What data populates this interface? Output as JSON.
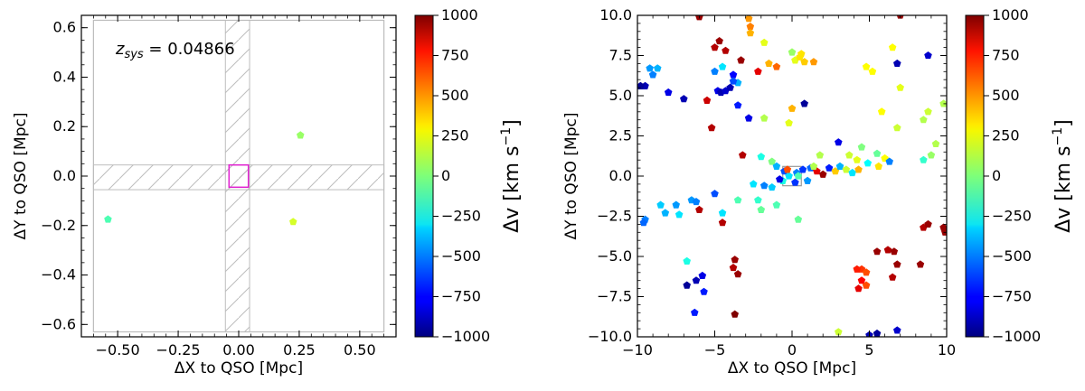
{
  "chart_data": [
    {
      "type": "scatter",
      "name": "zoom-panel",
      "xlabel": "ΔX to QSO [Mpc]",
      "ylabel": "ΔY to QSO [Mpc]",
      "xlim": [
        -0.65,
        0.65
      ],
      "ylim": [
        -0.65,
        0.65
      ],
      "xticks": [
        -0.5,
        -0.25,
        0.0,
        0.25,
        0.5
      ],
      "xtick_labels": [
        "−0.50",
        "−0.25",
        "0.00",
        "0.25",
        "0.50"
      ],
      "yticks": [
        -0.6,
        -0.4,
        -0.2,
        0.0,
        0.2,
        0.4,
        0.6
      ],
      "ytick_labels": [
        "−0.6",
        "−0.4",
        "−0.2",
        "0.0",
        "0.2",
        "0.4",
        "0.6"
      ],
      "annotation_prefix": "z",
      "annotation_sub": "sys",
      "annotation_value": " = 0.04866",
      "field_box": [
        -0.6,
        0.6,
        -0.63,
        0.63
      ],
      "hatch_horizontal": [
        -0.055,
        0.045
      ],
      "hatch_vertical": [
        -0.055,
        0.045
      ],
      "qso_box": [
        -0.04,
        0.04,
        -0.045,
        0.045
      ],
      "qso_box_color": "#e020d0",
      "points": [
        {
          "x": -0.54,
          "y": -0.175,
          "v": -100
        },
        {
          "x": 0.255,
          "y": 0.165,
          "v": 50
        },
        {
          "x": 0.225,
          "y": -0.185,
          "v": 170
        }
      ],
      "colorbar": {
        "label_base": "Δv [km s",
        "label_exp": "−1",
        "label_end": "]",
        "vmin": -1000,
        "vmax": 1000,
        "ticks": [
          1000,
          750,
          500,
          250,
          0,
          -250,
          -500,
          -750,
          -1000
        ],
        "tick_labels": [
          "1000",
          "750",
          "500",
          "250",
          "0",
          "−250",
          "−500",
          "−750",
          "−1000"
        ]
      }
    },
    {
      "type": "scatter",
      "name": "wide-panel",
      "xlabel": "ΔX to QSO [Mpc]",
      "ylabel": "ΔY to QSO [Mpc]",
      "xlim": [
        -10,
        10
      ],
      "ylim": [
        -10,
        10
      ],
      "xticks": [
        -10,
        -5,
        0,
        5,
        10
      ],
      "xtick_labels": [
        "−10",
        "−5",
        "0",
        "5",
        "10"
      ],
      "yticks": [
        -10,
        -7.5,
        -5,
        -2.5,
        0,
        2.5,
        5,
        7.5,
        10
      ],
      "ytick_labels": [
        "−10.0",
        "−7.5",
        "−5.0",
        "−2.5",
        "0.0",
        "2.5",
        "5.0",
        "7.5",
        "10.0"
      ],
      "field_box": [
        -0.6,
        0.6,
        -0.6,
        0.6
      ],
      "points": [
        {
          "x": -9.5,
          "y": 5.6,
          "v": -900
        },
        {
          "x": -9.8,
          "y": 5.6,
          "v": -950
        },
        {
          "x": -9.2,
          "y": 6.7,
          "v": -450
        },
        {
          "x": -8.7,
          "y": 6.7,
          "v": -400
        },
        {
          "x": -9.0,
          "y": 6.3,
          "v": -500
        },
        {
          "x": -8.0,
          "y": 5.2,
          "v": -800
        },
        {
          "x": -7.0,
          "y": 4.8,
          "v": -900
        },
        {
          "x": -5.5,
          "y": 4.7,
          "v": 850
        },
        {
          "x": -5.0,
          "y": 8.0,
          "v": 900
        },
        {
          "x": -4.7,
          "y": 8.4,
          "v": 950
        },
        {
          "x": -4.3,
          "y": 7.8,
          "v": 900
        },
        {
          "x": -5.0,
          "y": 6.5,
          "v": -500
        },
        {
          "x": -4.5,
          "y": 6.8,
          "v": -300
        },
        {
          "x": -4.8,
          "y": 5.3,
          "v": -800
        },
        {
          "x": -4.6,
          "y": 5.2,
          "v": -900
        },
        {
          "x": -4.3,
          "y": 5.3,
          "v": -850
        },
        {
          "x": -4.0,
          "y": 5.5,
          "v": -900
        },
        {
          "x": -3.8,
          "y": 6.3,
          "v": -750
        },
        {
          "x": -3.5,
          "y": 5.8,
          "v": -400
        },
        {
          "x": -3.8,
          "y": 5.9,
          "v": -600
        },
        {
          "x": -3.3,
          "y": 7.2,
          "v": 950
        },
        {
          "x": -3.5,
          "y": 4.4,
          "v": -700
        },
        {
          "x": -2.8,
          "y": 9.8,
          "v": 450
        },
        {
          "x": -2.7,
          "y": 9.3,
          "v": 500
        },
        {
          "x": -2.7,
          "y": 8.9,
          "v": 400
        },
        {
          "x": -2.2,
          "y": 6.5,
          "v": 800
        },
        {
          "x": -1.8,
          "y": 8.3,
          "v": 200
        },
        {
          "x": -1.5,
          "y": 7.0,
          "v": 400
        },
        {
          "x": -1.0,
          "y": 6.8,
          "v": 550
        },
        {
          "x": 0.0,
          "y": 7.7,
          "v": 50
        },
        {
          "x": 0.2,
          "y": 7.2,
          "v": 200
        },
        {
          "x": 0.5,
          "y": 7.4,
          "v": 300
        },
        {
          "x": 0.8,
          "y": 7.1,
          "v": 350
        },
        {
          "x": 1.4,
          "y": 7.1,
          "v": 450
        },
        {
          "x": 0.6,
          "y": 7.6,
          "v": 300
        },
        {
          "x": -6.0,
          "y": 9.9,
          "v": 950
        },
        {
          "x": -2.8,
          "y": 3.6,
          "v": -800
        },
        {
          "x": -1.8,
          "y": 3.6,
          "v": 100
        },
        {
          "x": -0.2,
          "y": 3.3,
          "v": 200
        },
        {
          "x": 0.0,
          "y": 4.2,
          "v": 400
        },
        {
          "x": 0.8,
          "y": 4.5,
          "v": -950
        },
        {
          "x": -5.2,
          "y": 3.0,
          "v": 900
        },
        {
          "x": 6.5,
          "y": 8.0,
          "v": 250
        },
        {
          "x": 7.0,
          "y": 10.0,
          "v": 950
        },
        {
          "x": 6.8,
          "y": 7.0,
          "v": -900
        },
        {
          "x": 8.8,
          "y": 7.5,
          "v": -850
        },
        {
          "x": 4.8,
          "y": 6.8,
          "v": 250
        },
        {
          "x": 5.2,
          "y": 6.5,
          "v": 250
        },
        {
          "x": 5.8,
          "y": 4.0,
          "v": 250
        },
        {
          "x": 7.0,
          "y": 5.5,
          "v": 200
        },
        {
          "x": 8.5,
          "y": 3.5,
          "v": 100
        },
        {
          "x": 8.8,
          "y": 4.0,
          "v": 150
        },
        {
          "x": 9.8,
          "y": 4.5,
          "v": 100
        },
        {
          "x": 6.8,
          "y": 3.0,
          "v": 150
        },
        {
          "x": 9.3,
          "y": 2.0,
          "v": 100
        },
        {
          "x": 9.0,
          "y": 1.3,
          "v": 50
        },
        {
          "x": 8.5,
          "y": 1.0,
          "v": -150
        },
        {
          "x": 6.0,
          "y": 1.1,
          "v": 250
        },
        {
          "x": 5.5,
          "y": 1.4,
          "v": -50
        },
        {
          "x": 4.5,
          "y": 1.8,
          "v": 0
        },
        {
          "x": 3.0,
          "y": 2.1,
          "v": -800
        },
        {
          "x": 1.8,
          "y": 1.3,
          "v": 100
        },
        {
          "x": 3.7,
          "y": 1.3,
          "v": 150
        },
        {
          "x": 4.2,
          "y": 1.0,
          "v": 200
        },
        {
          "x": 4.9,
          "y": 0.8,
          "v": -250
        },
        {
          "x": 5.6,
          "y": 0.6,
          "v": 300
        },
        {
          "x": 6.3,
          "y": 0.9,
          "v": -500
        },
        {
          "x": -3.2,
          "y": 1.3,
          "v": 900
        },
        {
          "x": -2.0,
          "y": 1.2,
          "v": -200
        },
        {
          "x": -1.3,
          "y": 0.9,
          "v": 0
        },
        {
          "x": -1.0,
          "y": 0.6,
          "v": -400
        },
        {
          "x": -0.5,
          "y": 0.3,
          "v": -600
        },
        {
          "x": -0.2,
          "y": 0.0,
          "v": -300
        },
        {
          "x": 0.3,
          "y": 0.2,
          "v": -500
        },
        {
          "x": 0.7,
          "y": 0.4,
          "v": -650
        },
        {
          "x": 1.2,
          "y": 0.5,
          "v": -550
        },
        {
          "x": 1.6,
          "y": 0.3,
          "v": 800
        },
        {
          "x": 2.0,
          "y": 0.1,
          "v": 950
        },
        {
          "x": 2.4,
          "y": 0.5,
          "v": -700
        },
        {
          "x": 2.8,
          "y": 0.3,
          "v": 350
        },
        {
          "x": 3.1,
          "y": 0.6,
          "v": -400
        },
        {
          "x": 3.5,
          "y": 0.4,
          "v": 150
        },
        {
          "x": 3.9,
          "y": 0.2,
          "v": -300
        },
        {
          "x": 4.3,
          "y": 0.4,
          "v": 400
        },
        {
          "x": -2.5,
          "y": -0.5,
          "v": -300
        },
        {
          "x": -1.8,
          "y": -0.6,
          "v": -500
        },
        {
          "x": -1.3,
          "y": -0.7,
          "v": -350
        },
        {
          "x": -0.6,
          "y": -0.3,
          "v": -200
        },
        {
          "x": 0.2,
          "y": -0.4,
          "v": -650
        },
        {
          "x": 1.0,
          "y": -0.3,
          "v": -450
        },
        {
          "x": -0.3,
          "y": 0.4,
          "v": 600
        },
        {
          "x": 0.4,
          "y": 0.0,
          "v": -100
        },
        {
          "x": 1.4,
          "y": 0.6,
          "v": 100
        },
        {
          "x": -0.8,
          "y": -0.2,
          "v": -800
        },
        {
          "x": -9.5,
          "y": -2.7,
          "v": -500
        },
        {
          "x": -9.6,
          "y": -2.9,
          "v": -550
        },
        {
          "x": -8.5,
          "y": -1.8,
          "v": -350
        },
        {
          "x": -8.2,
          "y": -2.3,
          "v": -400
        },
        {
          "x": -7.5,
          "y": -1.8,
          "v": -450
        },
        {
          "x": -7.3,
          "y": -2.4,
          "v": -300
        },
        {
          "x": -6.5,
          "y": -1.5,
          "v": -450
        },
        {
          "x": -6.2,
          "y": -1.6,
          "v": -500
        },
        {
          "x": -6.0,
          "y": -2.1,
          "v": 900
        },
        {
          "x": -5.0,
          "y": -1.1,
          "v": -600
        },
        {
          "x": -4.5,
          "y": -2.3,
          "v": -300
        },
        {
          "x": -4.5,
          "y": -2.9,
          "v": 900
        },
        {
          "x": -3.5,
          "y": -1.5,
          "v": -100
        },
        {
          "x": -2.2,
          "y": -1.5,
          "v": -150
        },
        {
          "x": -1.0,
          "y": -1.8,
          "v": -100
        },
        {
          "x": -2.0,
          "y": -2.1,
          "v": -50
        },
        {
          "x": 0.4,
          "y": -2.7,
          "v": -50
        },
        {
          "x": -6.8,
          "y": -5.3,
          "v": -200
        },
        {
          "x": -6.8,
          "y": -6.8,
          "v": -950
        },
        {
          "x": -6.2,
          "y": -6.5,
          "v": -900
        },
        {
          "x": -5.8,
          "y": -6.2,
          "v": -800
        },
        {
          "x": -5.7,
          "y": -7.2,
          "v": -700
        },
        {
          "x": -6.3,
          "y": -8.5,
          "v": -700
        },
        {
          "x": -3.8,
          "y": -5.7,
          "v": 900
        },
        {
          "x": -3.5,
          "y": -6.1,
          "v": 950
        },
        {
          "x": -3.7,
          "y": -8.6,
          "v": 1000
        },
        {
          "x": -3.7,
          "y": -5.2,
          "v": 950
        },
        {
          "x": 4.5,
          "y": -5.8,
          "v": 650
        },
        {
          "x": 4.2,
          "y": -5.8,
          "v": 700
        },
        {
          "x": 4.8,
          "y": -6.0,
          "v": 600
        },
        {
          "x": 4.5,
          "y": -6.5,
          "v": 750
        },
        {
          "x": 4.8,
          "y": -6.8,
          "v": 600
        },
        {
          "x": 4.3,
          "y": -7.0,
          "v": 800
        },
        {
          "x": 5.5,
          "y": -4.7,
          "v": 950
        },
        {
          "x": 6.2,
          "y": -4.6,
          "v": 900
        },
        {
          "x": 6.6,
          "y": -4.7,
          "v": 950
        },
        {
          "x": 6.8,
          "y": -5.5,
          "v": 950
        },
        {
          "x": 6.5,
          "y": -6.3,
          "v": 900
        },
        {
          "x": 8.5,
          "y": -3.2,
          "v": 900
        },
        {
          "x": 8.8,
          "y": -3.0,
          "v": 950
        },
        {
          "x": 9.8,
          "y": -3.2,
          "v": 950
        },
        {
          "x": 9.9,
          "y": -3.5,
          "v": 950
        },
        {
          "x": 8.3,
          "y": -5.5,
          "v": 950
        },
        {
          "x": 3.0,
          "y": -9.7,
          "v": 150
        },
        {
          "x": 5.0,
          "y": -9.9,
          "v": -900
        },
        {
          "x": 5.5,
          "y": -9.8,
          "v": -950
        },
        {
          "x": 6.8,
          "y": -9.6,
          "v": -850
        }
      ],
      "colorbar": {
        "label_base": "Δv [km s",
        "label_exp": "−1",
        "label_end": "]",
        "vmin": -1000,
        "vmax": 1000,
        "ticks": [
          1000,
          750,
          500,
          250,
          0,
          -250,
          -500,
          -750,
          -1000
        ],
        "tick_labels": [
          "1000",
          "750",
          "500",
          "250",
          "0",
          "−250",
          "−500",
          "−750",
          "−1000"
        ]
      }
    }
  ]
}
